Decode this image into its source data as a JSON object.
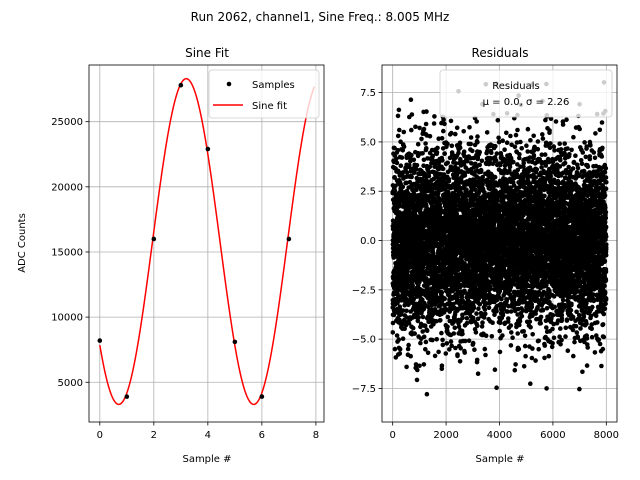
{
  "suptitle": "Run 2062, channel1, Sine Freq.: 8.005 MHz",
  "chart_data": [
    {
      "type": "scatter",
      "title": "Sine Fit",
      "xlabel": "Sample #",
      "ylabel": "ADC Counts",
      "xlim": [
        -0.4,
        8.3
      ],
      "ylim": [
        1950,
        29350
      ],
      "xticks": [
        0,
        2,
        4,
        6,
        8
      ],
      "xtick_labels": [
        "0",
        "2",
        "4",
        "6",
        "8"
      ],
      "yticks": [
        5000,
        10000,
        15000,
        20000,
        25000
      ],
      "ytick_labels": [
        "5000",
        "10000",
        "15000",
        "20000",
        "25000"
      ],
      "grid": true,
      "legend_position": "upper right",
      "series": [
        {
          "name": "Samples",
          "kind": "points",
          "color": "#000000",
          "x": [
            0,
            1,
            2,
            3,
            4,
            5,
            6,
            7
          ],
          "y": [
            8200,
            3900,
            16000,
            27800,
            22900,
            8100,
            3900,
            16000
          ]
        },
        {
          "name": "Sine fit",
          "kind": "line",
          "color": "#ff0000",
          "model": {
            "offset": 15800,
            "amplitude": 12500,
            "period_samples": 4.9975,
            "peak_at_sample": 3.2
          },
          "x_range": [
            0,
            7.95
          ]
        }
      ]
    },
    {
      "type": "scatter",
      "title": "Residuals",
      "xlabel": "Sample #",
      "xlim": [
        -400,
        8400
      ],
      "ylim": [
        -9.2,
        8.9
      ],
      "xticks": [
        0,
        2000,
        4000,
        6000,
        8000
      ],
      "xtick_labels": [
        "0",
        "2000",
        "4000",
        "6000",
        "8000"
      ],
      "yticks": [
        -7.5,
        -5.0,
        -2.5,
        0.0,
        2.5,
        5.0,
        7.5
      ],
      "ytick_labels": [
        "−7.5",
        "−5.0",
        "−2.5",
        "0.0",
        "2.5",
        "5.0",
        "7.5"
      ],
      "grid": true,
      "legend_position": "upper right",
      "legend_lines": [
        "Residuals",
        "μ = 0.0, σ = 2.26"
      ],
      "series": [
        {
          "name": "Residuals",
          "color": "#000000",
          "n_points": 8000,
          "x_range": [
            0,
            7999
          ],
          "mean": 0.0,
          "std": 2.26,
          "y_min": -8.5,
          "y_max": 8.1
        }
      ]
    }
  ]
}
